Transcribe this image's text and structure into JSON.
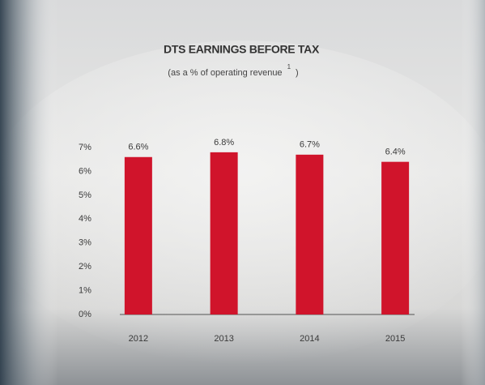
{
  "chart_data": {
    "type": "bar",
    "title": "DTS EARNINGS BEFORE TAX",
    "subtitle": "(as a % of operating revenue",
    "subtitle_footnote": "1",
    "subtitle_end": ")",
    "categories": [
      "2012",
      "2013",
      "2014",
      "2015"
    ],
    "values": [
      6.6,
      6.8,
      6.7,
      6.4
    ],
    "value_labels": [
      "6.6%",
      "6.8%",
      "6.7%",
      "6.4%"
    ],
    "color": "#d0142b",
    "ylim": [
      0,
      7
    ],
    "yticks": [
      {
        "value": 0,
        "label": "0%"
      },
      {
        "value": 1,
        "label": "1%"
      },
      {
        "value": 2,
        "label": "2%"
      },
      {
        "value": 3,
        "label": "3%"
      },
      {
        "value": 4,
        "label": "4%"
      },
      {
        "value": 5,
        "label": "5%"
      },
      {
        "value": 6,
        "label": "6%"
      },
      {
        "value": 7,
        "label": "7%"
      }
    ],
    "grid": false
  }
}
